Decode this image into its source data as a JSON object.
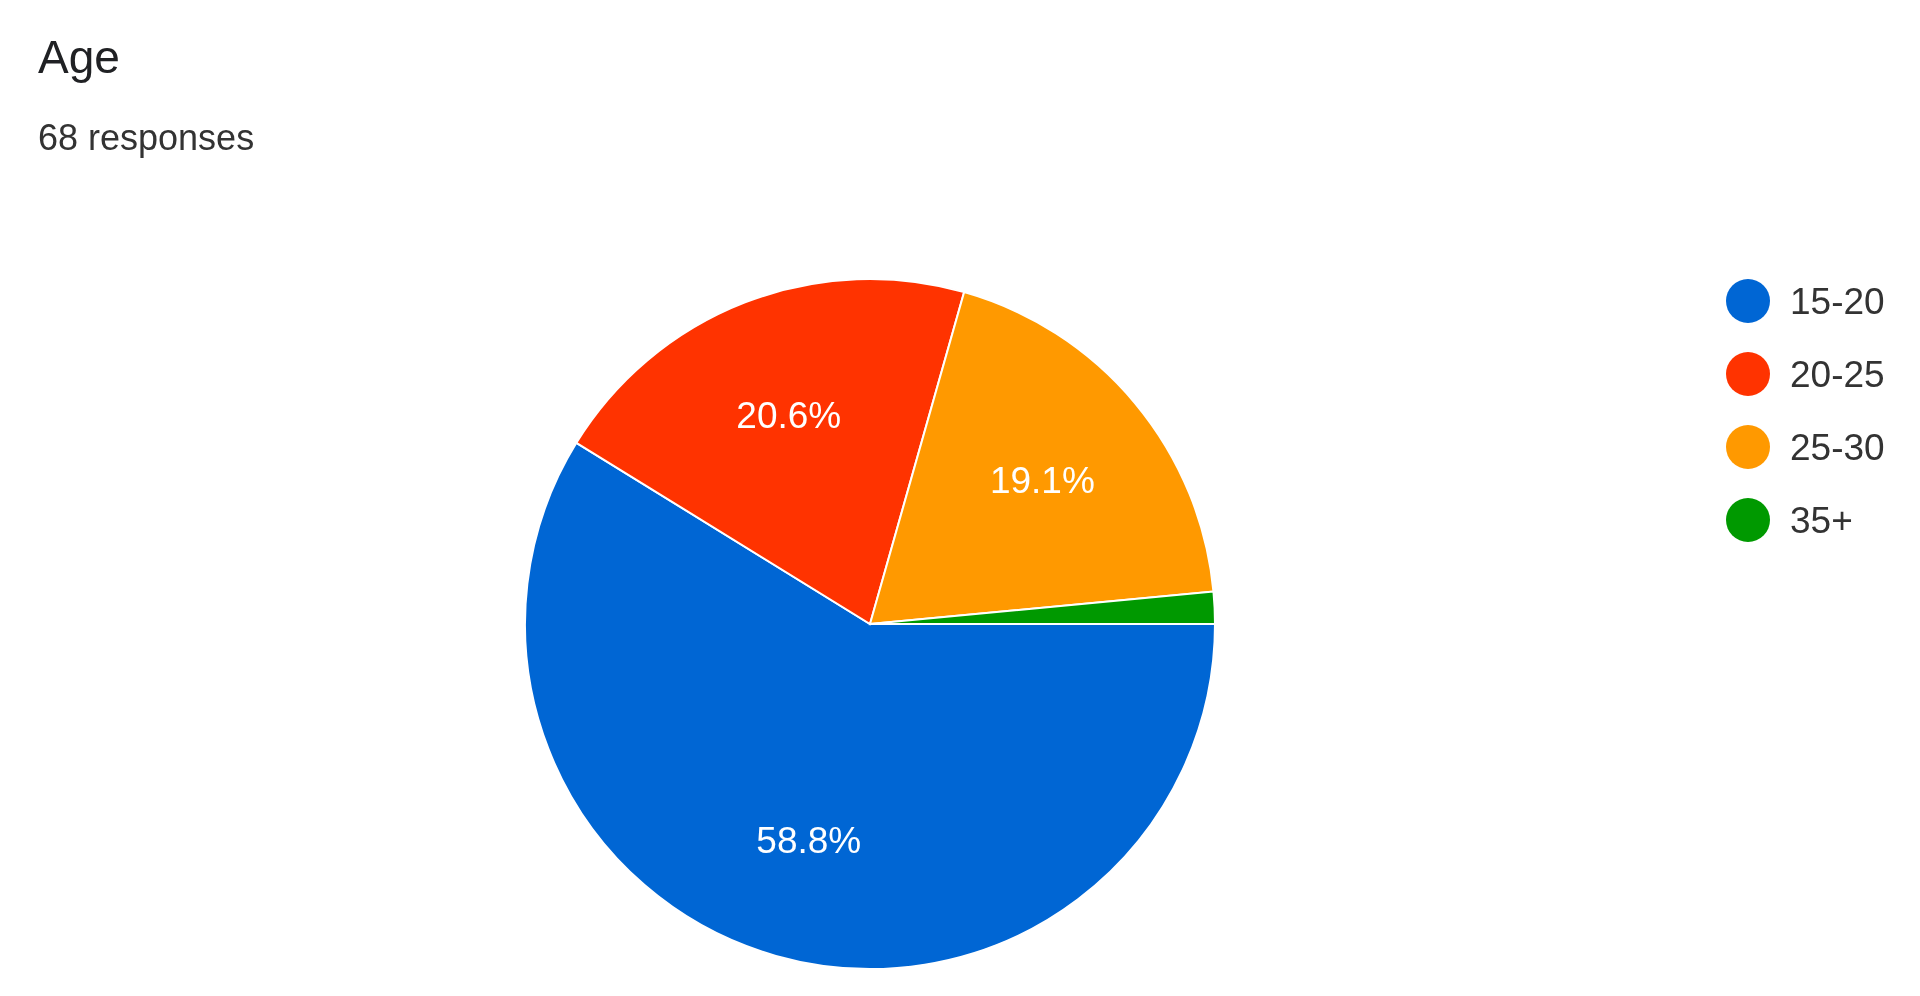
{
  "chart_data": {
    "type": "pie",
    "title": "Age",
    "subtitle": "68 responses",
    "categories": [
      "15-20",
      "20-25",
      "25-30",
      "35+"
    ],
    "values": [
      58.8,
      20.6,
      19.1,
      1.5
    ],
    "colors": [
      "#0066d4",
      "#ff3300",
      "#ff9900",
      "#009900"
    ],
    "value_labels": [
      "58.8%",
      "20.6%",
      "19.1%",
      null
    ],
    "legend": "right"
  }
}
